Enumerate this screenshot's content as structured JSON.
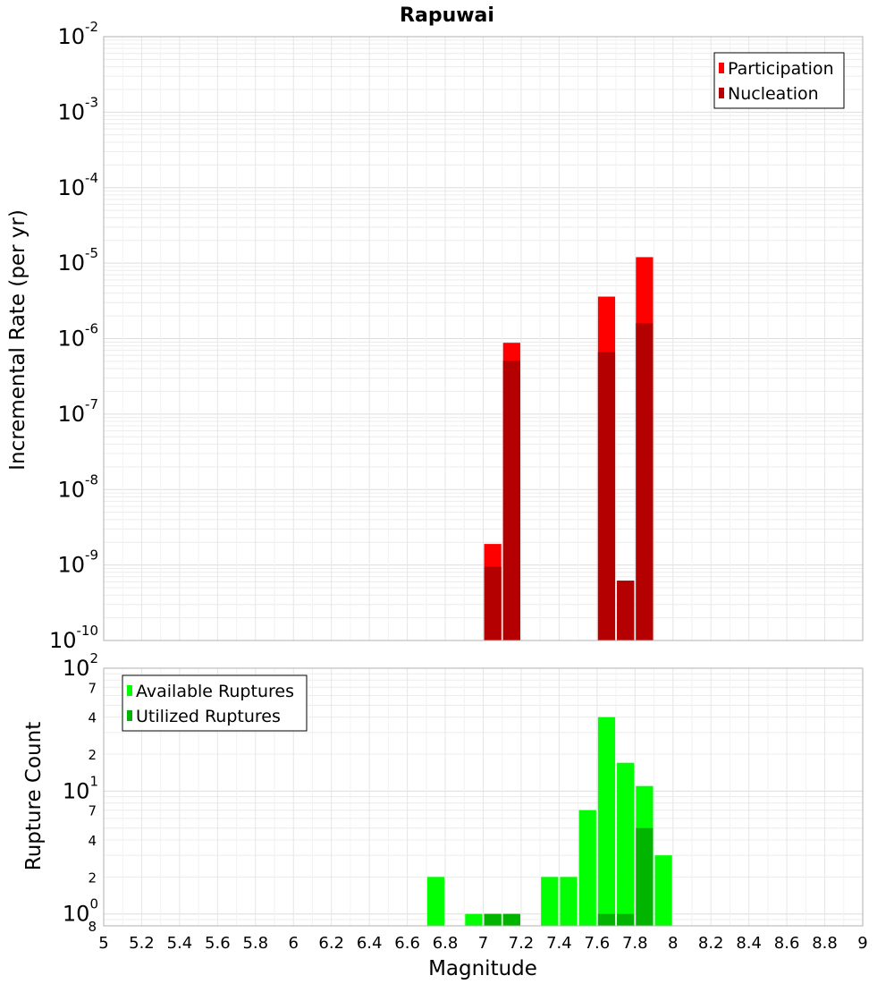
{
  "chart_data": [
    {
      "type": "bar",
      "title": "Rapuwai",
      "ylabel": "Incremental Rate (per yr)",
      "yscale": "log",
      "ylim": [
        1e-10,
        0.01
      ],
      "xlim": [
        5,
        9
      ],
      "bin_width": 0.1,
      "ytick_labels": [
        {
          "value": 1e-10,
          "base": "10",
          "exp": "-10"
        },
        {
          "value": 1e-09,
          "base": "10",
          "exp": "-9"
        },
        {
          "value": 1e-08,
          "base": "10",
          "exp": "-8"
        },
        {
          "value": 1e-07,
          "base": "10",
          "exp": "-7"
        },
        {
          "value": 1e-06,
          "base": "10",
          "exp": "-6"
        },
        {
          "value": 1e-05,
          "base": "10",
          "exp": "-5"
        },
        {
          "value": 0.0001,
          "base": "10",
          "exp": "-4"
        },
        {
          "value": 0.001,
          "base": "10",
          "exp": "-3"
        },
        {
          "value": 0.01,
          "base": "10",
          "exp": "-2"
        }
      ],
      "legend": "top-right",
      "series": [
        {
          "name": "Participation",
          "color": "#ff0000",
          "x": [
            7.05,
            7.15,
            7.65,
            7.75,
            7.85
          ],
          "values": [
            1.9e-09,
            8.8e-07,
            3.6e-06,
            6.2e-10,
            1.2e-05
          ]
        },
        {
          "name": "Nucleation",
          "color": "#b40000",
          "x": [
            7.05,
            7.15,
            7.65,
            7.75,
            7.85
          ],
          "values": [
            9.5e-10,
            5.1e-07,
            6.6e-07,
            6.2e-10,
            1.6e-06
          ]
        }
      ]
    },
    {
      "type": "bar",
      "xlabel": "Magnitude",
      "ylabel": "Rupture Count",
      "yscale": "log",
      "ylim": [
        0.8,
        100
      ],
      "xlim": [
        5,
        9
      ],
      "bin_width": 0.1,
      "xticks": [
        5,
        5.2,
        5.4,
        5.6,
        5.8,
        6,
        6.2,
        6.4,
        6.6,
        6.8,
        7,
        7.2,
        7.4,
        7.6,
        7.8,
        8,
        8.2,
        8.4,
        8.6,
        8.8,
        9
      ],
      "xtick_labels": [
        "5",
        "5.2",
        "5.4",
        "5.6",
        "5.8",
        "6",
        "6.2",
        "6.4",
        "6.6",
        "6.8",
        "7",
        "7.2",
        "7.4",
        "7.6",
        "7.8",
        "8",
        "8.2",
        "8.4",
        "8.6",
        "8.8",
        "9"
      ],
      "ytick_labels": [
        {
          "value": 1,
          "base": "10",
          "exp": "0"
        },
        {
          "value": 10,
          "base": "10",
          "exp": "1"
        },
        {
          "value": 100,
          "base": "10",
          "exp": "2"
        }
      ],
      "minor_tick_labels": [
        {
          "value": 0.8,
          "label": "8"
        },
        {
          "value": 2,
          "label": "2"
        },
        {
          "value": 4,
          "label": "4"
        },
        {
          "value": 7,
          "label": "7"
        },
        {
          "value": 20,
          "label": "2"
        },
        {
          "value": 40,
          "label": "4"
        },
        {
          "value": 70,
          "label": "7"
        }
      ],
      "legend": "top-left",
      "series": [
        {
          "name": "Available Ruptures",
          "color": "#00ff00",
          "x": [
            6.75,
            6.95,
            7.05,
            7.15,
            7.35,
            7.45,
            7.55,
            7.65,
            7.75,
            7.85,
            7.95
          ],
          "values": [
            2,
            1,
            1,
            1,
            2,
            2,
            7,
            40,
            17,
            11,
            3
          ]
        },
        {
          "name": "Utilized Ruptures",
          "color": "#00b400",
          "x": [
            7.05,
            7.15,
            7.65,
            7.75,
            7.85
          ],
          "values": [
            1,
            1,
            1,
            1,
            5
          ]
        }
      ]
    }
  ]
}
